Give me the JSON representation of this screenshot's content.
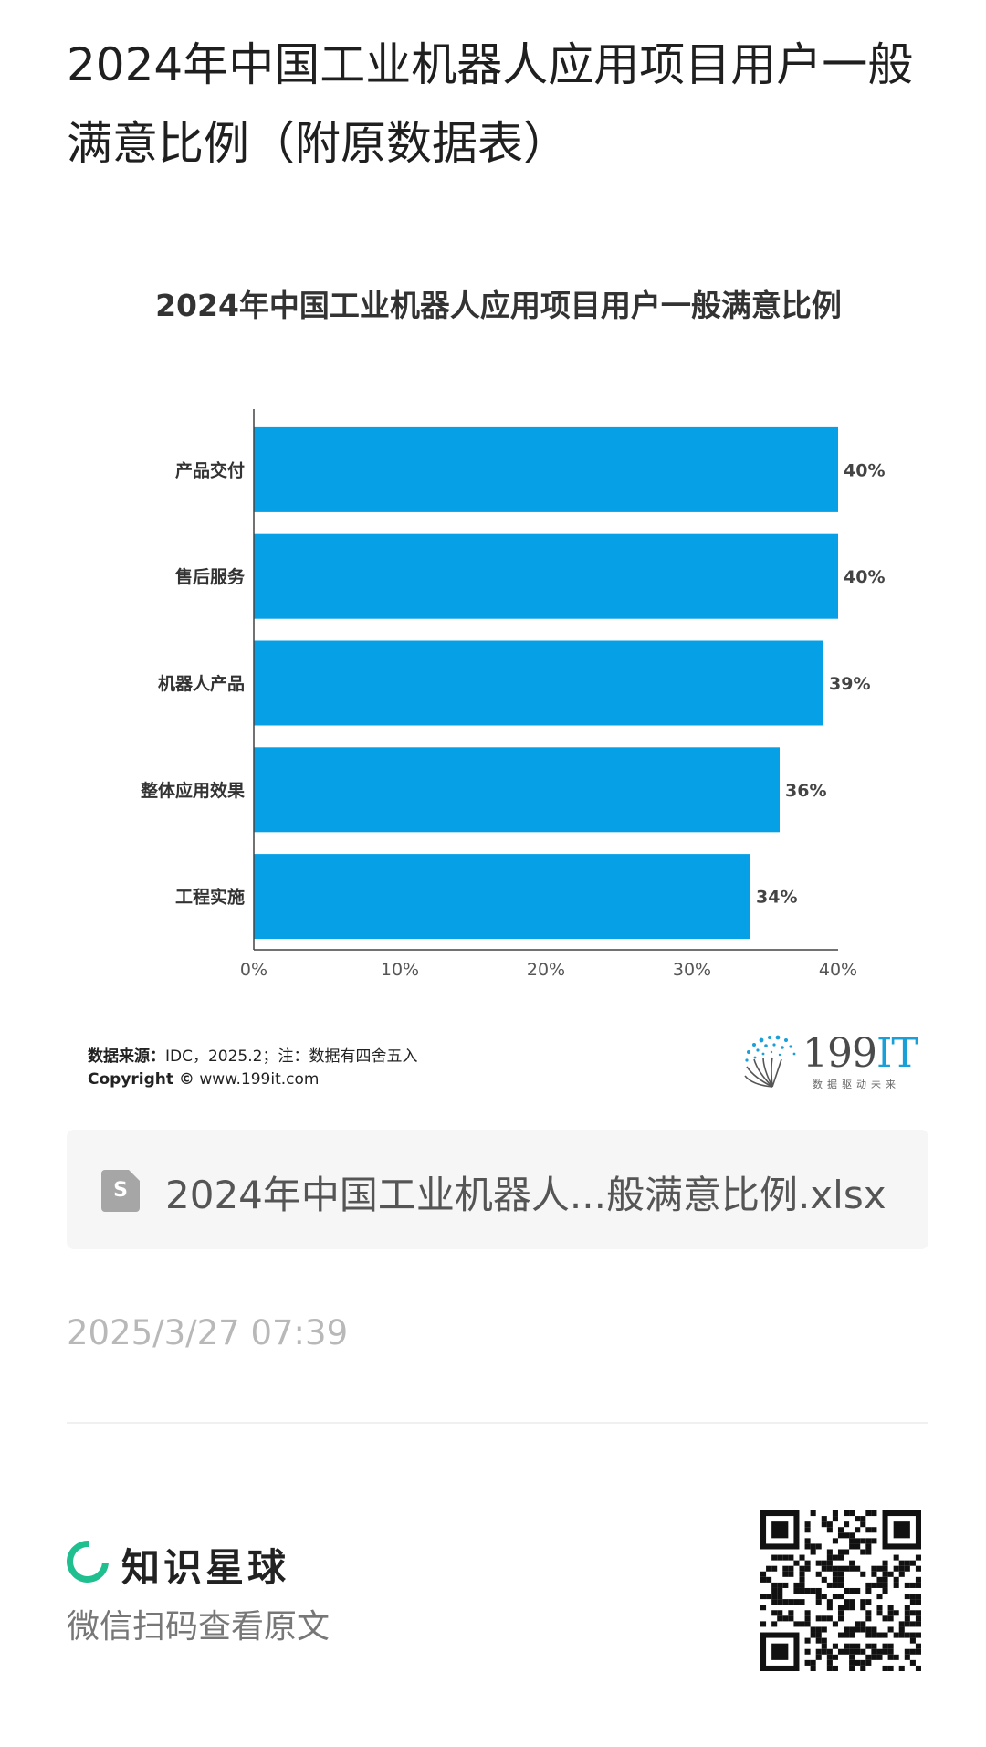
{
  "page": {
    "title": "2024年中国工业机器人应用项目用户一般满意比例（附原数据表）"
  },
  "chart_data": {
    "type": "bar",
    "orientation": "horizontal",
    "title": "2024年中国工业机器人应用项目用户一般满意比例",
    "categories": [
      "产品交付",
      "售后服务",
      "机器人产品",
      "整体应用效果",
      "工程实施"
    ],
    "values": [
      40,
      40,
      39,
      36,
      34
    ],
    "data_labels": [
      "40%",
      "40%",
      "39%",
      "36%",
      "34%"
    ],
    "xlim": [
      0,
      40
    ],
    "xticks": [
      0,
      10,
      20,
      30,
      40
    ],
    "xtick_labels": [
      "0%",
      "10%",
      "20%",
      "30%",
      "40%"
    ],
    "xlabel": "",
    "ylabel": "",
    "grid": false,
    "bar_color": "#05a0e6"
  },
  "source": {
    "label": "数据来源：",
    "text": "IDC，2025.2；注：数据有四舍五入",
    "copyright_label": "Copyright ©",
    "copyright_url": "www.199it.com"
  },
  "logo": {
    "number": "199",
    "suffix": "IT",
    "tagline": "数据驱动未来",
    "accent": "#1aa0d8"
  },
  "file": {
    "icon": "spreadsheet-file-icon",
    "icon_letter": "S",
    "name": "2024年中国工业机器人...般满意比例.xlsx"
  },
  "timestamp": "2025/3/27 07:39",
  "footer": {
    "brand_icon": "zhishixingqiu-logo-icon",
    "brand_name": "知识星球",
    "brand_color": "#1fbf8f",
    "scan_hint": "微信扫码查看原文"
  }
}
